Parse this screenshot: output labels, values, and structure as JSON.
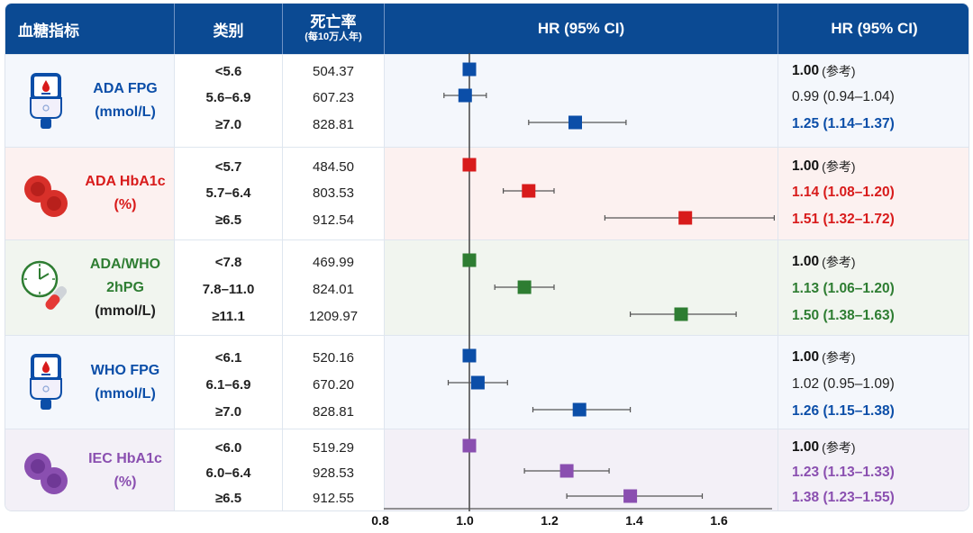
{
  "header": {
    "col_indicator": "血糖指标",
    "col_category": "类别",
    "col_mortality": "死亡率",
    "col_mortality_sub": "(每10万人年)",
    "col_plot": "HR (95% CI)",
    "col_hr": "HR (95% CI)"
  },
  "colors": {
    "header_bg": "#0b4a93",
    "blue": "#0b4ea8",
    "red": "#d81b1b",
    "green": "#2e7d32",
    "purple": "#8a4fb0"
  },
  "groups": [
    {
      "name_line1": "ADA FPG",
      "name_line2": "(mmol/L)",
      "name_line3": "",
      "icon": "glucose-meter-icon",
      "color": "#0b4ea8",
      "bg": "#f4f7fc",
      "rows": [
        {
          "category": "<5.6",
          "mortality": "504.37",
          "hr_num": "1.00",
          "hr_text": "(参考)",
          "ref": true,
          "sig": false
        },
        {
          "category": "5.6–6.9",
          "mortality": "607.23",
          "hr_num": "0.99 (0.94–1.04)",
          "hr_text": "",
          "ref": false,
          "sig": false
        },
        {
          "category": "≥7.0",
          "mortality": "828.81",
          "hr_num": "1.25 (1.14–1.37)",
          "hr_text": "",
          "ref": false,
          "sig": true
        }
      ]
    },
    {
      "name_line1": "ADA HbA1c",
      "name_line2": "(%)",
      "name_line3": "",
      "icon": "red-blood-cells-icon",
      "color": "#d81b1b",
      "bg": "#fcf1f0",
      "rows": [
        {
          "category": "<5.7",
          "mortality": "484.50",
          "hr_num": "1.00",
          "hr_text": "(参考)",
          "ref": true,
          "sig": false
        },
        {
          "category": "5.7–6.4",
          "mortality": "803.53",
          "hr_num": "1.14 (1.08–1.20)",
          "hr_text": "",
          "ref": false,
          "sig": true
        },
        {
          "category": "≥6.5",
          "mortality": "912.54",
          "hr_num": "1.51 (1.32–1.72)",
          "hr_text": "",
          "ref": false,
          "sig": true
        }
      ]
    },
    {
      "name_line1": "ADA/WHO",
      "name_line2": "2hPG",
      "name_line3": "(mmol/L)",
      "icon": "clock-test-tube-icon",
      "color": "#2e7d32",
      "bg": "#f1f5ef",
      "rows": [
        {
          "category": "<7.8",
          "mortality": "469.99",
          "hr_num": "1.00",
          "hr_text": "(参考)",
          "ref": true,
          "sig": false
        },
        {
          "category": "7.8–11.0",
          "mortality": "824.01",
          "hr_num": "1.13 (1.06–1.20)",
          "hr_text": "",
          "ref": false,
          "sig": true
        },
        {
          "category": "≥11.1",
          "mortality": "1209.97",
          "hr_num": "1.50 (1.38–1.63)",
          "hr_text": "",
          "ref": false,
          "sig": true
        }
      ]
    },
    {
      "name_line1": "WHO FPG",
      "name_line2": "(mmol/L)",
      "name_line3": "",
      "icon": "glucose-meter-icon",
      "color": "#0b4ea8",
      "bg": "#f4f7fc",
      "rows": [
        {
          "category": "<6.1",
          "mortality": "520.16",
          "hr_num": "1.00",
          "hr_text": "(参考)",
          "ref": true,
          "sig": false
        },
        {
          "category": "6.1–6.9",
          "mortality": "670.20",
          "hr_num": "1.02 (0.95–1.09)",
          "hr_text": "",
          "ref": false,
          "sig": false
        },
        {
          "category": "≥7.0",
          "mortality": "828.81",
          "hr_num": "1.26 (1.15–1.38)",
          "hr_text": "",
          "ref": false,
          "sig": true
        }
      ]
    },
    {
      "name_line1": "IEC HbA1c",
      "name_line2": "(%)",
      "name_line3": "",
      "icon": "purple-blood-cells-icon",
      "color": "#8a4fb0",
      "bg": "#f3f0f7",
      "rows": [
        {
          "category": "<6.0",
          "mortality": "519.29",
          "hr_num": "1.00",
          "hr_text": "(参考)",
          "ref": true,
          "sig": false
        },
        {
          "category": "6.0–6.4",
          "mortality": "928.53",
          "hr_num": "1.23 (1.13–1.33)",
          "hr_text": "",
          "ref": false,
          "sig": true
        },
        {
          "category": "≥6.5",
          "mortality": "912.55",
          "hr_num": "1.38 (1.23–1.55)",
          "hr_text": "",
          "ref": false,
          "sig": true
        }
      ]
    }
  ],
  "chart_data": {
    "type": "forest",
    "title": "HR (95% CI)",
    "xlabel": "",
    "xlim": [
      0.78,
      1.72
    ],
    "xticks": [
      "0.8",
      "1.0",
      "1.2",
      "1.4",
      "1.6"
    ],
    "reference_line": 1.0,
    "grid": false,
    "series": [
      {
        "name": "ADA FPG (mmol/L)",
        "color": "#0b4ea8",
        "points": [
          {
            "label": "<5.6",
            "hr": 1.0,
            "lo": null,
            "hi": null
          },
          {
            "label": "5.6–6.9",
            "hr": 0.99,
            "lo": 0.94,
            "hi": 1.04
          },
          {
            "label": "≥7.0",
            "hr": 1.25,
            "lo": 1.14,
            "hi": 1.37
          }
        ]
      },
      {
        "name": "ADA HbA1c (%)",
        "color": "#d81b1b",
        "points": [
          {
            "label": "<5.7",
            "hr": 1.0,
            "lo": null,
            "hi": null
          },
          {
            "label": "5.7–6.4",
            "hr": 1.14,
            "lo": 1.08,
            "hi": 1.2
          },
          {
            "label": "≥6.5",
            "hr": 1.51,
            "lo": 1.32,
            "hi": 1.72
          }
        ]
      },
      {
        "name": "ADA/WHO 2hPG (mmol/L)",
        "color": "#2e7d32",
        "points": [
          {
            "label": "<7.8",
            "hr": 1.0,
            "lo": null,
            "hi": null
          },
          {
            "label": "7.8–11.0",
            "hr": 1.13,
            "lo": 1.06,
            "hi": 1.2
          },
          {
            "label": "≥11.1",
            "hr": 1.5,
            "lo": 1.38,
            "hi": 1.63
          }
        ]
      },
      {
        "name": "WHO FPG (mmol/L)",
        "color": "#0b4ea8",
        "points": [
          {
            "label": "<6.1",
            "hr": 1.0,
            "lo": null,
            "hi": null
          },
          {
            "label": "6.1–6.9",
            "hr": 1.02,
            "lo": 0.95,
            "hi": 1.09
          },
          {
            "label": "≥7.0",
            "hr": 1.26,
            "lo": 1.15,
            "hi": 1.38
          }
        ]
      },
      {
        "name": "IEC HbA1c (%)",
        "color": "#8a4fb0",
        "points": [
          {
            "label": "<6.0",
            "hr": 1.0,
            "lo": null,
            "hi": null
          },
          {
            "label": "6.0–6.4",
            "hr": 1.23,
            "lo": 1.13,
            "hi": 1.33
          },
          {
            "label": "≥6.5",
            "hr": 1.38,
            "lo": 1.23,
            "hi": 1.55
          }
        ]
      }
    ]
  }
}
